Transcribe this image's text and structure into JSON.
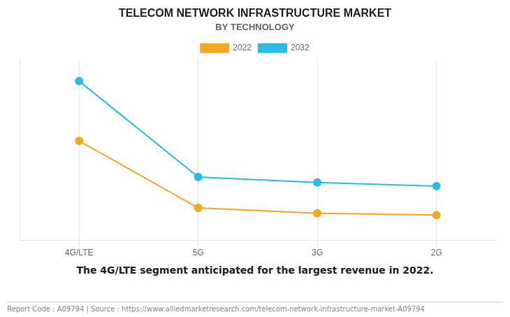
{
  "chart_data": {
    "type": "line",
    "title": "TELECOM NETWORK INFRASTRUCTURE MARKET",
    "subtitle": "BY TECHNOLOGY",
    "annotation": "The 4G/LTE segment anticipated for the largest revenue in 2022.",
    "footer": "Report Code : A09794  |  Source : https://www.alliedmarketresearch.com/telecom-network-infrastructure-market-A09794",
    "categories": [
      "4G/LTE",
      "5G",
      "3G",
      "2G"
    ],
    "series": [
      {
        "name": "2022",
        "color": "#f5a623",
        "marker": "circle",
        "values": [
          55,
          18,
          15,
          14
        ]
      },
      {
        "name": "2032",
        "color": "#29bce8",
        "marker": "circle",
        "values": [
          88,
          35,
          32,
          30
        ]
      }
    ],
    "ylim": [
      0,
      100
    ],
    "yticks": [],
    "grid": true,
    "legend": "top",
    "tick_labels": "x"
  }
}
